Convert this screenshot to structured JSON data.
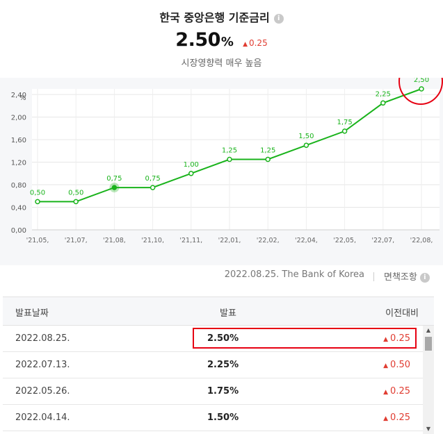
{
  "header": {
    "title": "한국 중앙은행 기준금리",
    "rate_value": "2.50",
    "rate_unit": "%",
    "change_arrow": "▲",
    "change_value": "0.25",
    "subtitle": "시장영향력 매우 높음"
  },
  "colors": {
    "line": "#19b31b",
    "up": "#e03c31",
    "highlight": "#e60012",
    "chart_bg": "#f6f7f9"
  },
  "chart_data": {
    "type": "line",
    "ylabel": "%",
    "ylim": [
      0,
      2.5
    ],
    "y_ticks": [
      "0,00",
      "0,40",
      "0,80",
      "1,20",
      "1,60",
      "2,00",
      "2,40"
    ],
    "x_ticks": [
      "'21,05,",
      "'21,07,",
      "'21,08,",
      "'21,10,",
      "'21,11,",
      "'22,01,",
      "'22,02,",
      "'22,04,",
      "'22,05,",
      "'22,07,",
      "'22,08,"
    ],
    "series": [
      {
        "values": [
          0.5,
          0.5,
          0.75,
          0.75,
          1.0,
          1.25,
          1.25,
          1.5,
          1.75,
          2.25,
          2.5
        ],
        "labels": [
          "0,50",
          "0,50",
          "0,75",
          "0,75",
          "1,00",
          "1,25",
          "1,25",
          "1,50",
          "1,75",
          "2,25",
          "2,50"
        ]
      }
    ],
    "grid": true,
    "highlighted_point": 2,
    "circled_point": 10
  },
  "source": {
    "text": "2022.08.25. The Bank of Korea",
    "disclaimer": "면책조항"
  },
  "table": {
    "headers": {
      "date": "발표날짜",
      "value": "발표",
      "change": "이전대비"
    },
    "rows": [
      {
        "date": "2022.08.25.",
        "value": "2.50%",
        "arrow": "▲",
        "change": "0.25"
      },
      {
        "date": "2022.07.13.",
        "value": "2.25%",
        "arrow": "▲",
        "change": "0.50"
      },
      {
        "date": "2022.05.26.",
        "value": "1.75%",
        "arrow": "▲",
        "change": "0.25"
      },
      {
        "date": "2022.04.14.",
        "value": "1.50%",
        "arrow": "▲",
        "change": "0.25"
      }
    ],
    "highlighted_row": 0
  },
  "icons": {
    "info": "info-icon",
    "disclaimer": "info-icon",
    "scroll_up": "chevron-up-icon",
    "scroll_down": "chevron-down-icon"
  }
}
